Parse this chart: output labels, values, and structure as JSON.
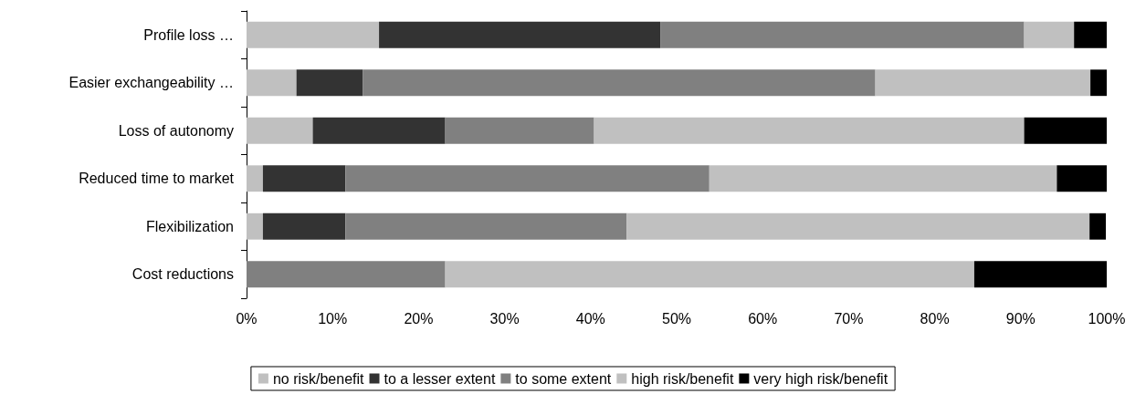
{
  "chart_data": {
    "type": "bar",
    "orientation": "horizontal",
    "stacked": true,
    "categories": [
      "Profile loss …",
      "Easier exchangeability …",
      "Loss of autonomy",
      "Reduced time to market",
      "Flexibilization",
      "Cost reductions"
    ],
    "series": [
      {
        "name": "no risk/benefit",
        "color": "#c0c0c0",
        "values": [
          15.4,
          5.8,
          7.7,
          1.9,
          1.9,
          0
        ]
      },
      {
        "name": "to a lesser extent",
        "color": "#333333",
        "values": [
          32.7,
          7.7,
          15.4,
          9.6,
          9.6,
          0
        ]
      },
      {
        "name": "to some extent",
        "color": "#808080",
        "values": [
          42.3,
          59.6,
          17.3,
          42.3,
          32.7,
          23.1
        ]
      },
      {
        "name": "high risk/benefit",
        "color": "#c0c0c0",
        "values": [
          5.8,
          25.0,
          50.0,
          40.4,
          53.8,
          61.5
        ]
      },
      {
        "name": "very high risk/benefit",
        "color": "#000000",
        "values": [
          3.8,
          1.9,
          9.6,
          5.8,
          1.9,
          15.4
        ]
      }
    ],
    "xlim": [
      0,
      100
    ],
    "xticks": [
      {
        "value": 0,
        "label": "0%"
      },
      {
        "value": 10,
        "label": "10%"
      },
      {
        "value": 20,
        "label": "20%"
      },
      {
        "value": 30,
        "label": "30%"
      },
      {
        "value": 40,
        "label": "40%"
      },
      {
        "value": 50,
        "label": "50%"
      },
      {
        "value": 60,
        "label": "60%"
      },
      {
        "value": 70,
        "label": "70%"
      },
      {
        "value": 80,
        "label": "80%"
      },
      {
        "value": 90,
        "label": "90%"
      },
      {
        "value": 100,
        "label": "100%"
      }
    ],
    "grid": false,
    "legend": "bottom"
  }
}
